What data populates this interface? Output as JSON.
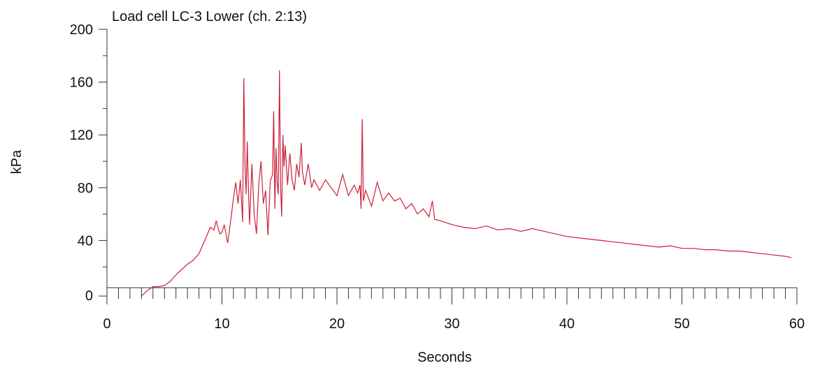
{
  "chart_data": {
    "type": "line",
    "title": "Load cell LC-3 Lower (ch. 2:13)",
    "xlabel": "Seconds",
    "ylabel": "kPa",
    "xlim": [
      0,
      60
    ],
    "ylim": [
      0,
      200
    ],
    "x_ticks": [
      "0",
      "10",
      "20",
      "30",
      "40",
      "50",
      "60"
    ],
    "y_ticks": [
      "0",
      "40",
      "80",
      "120",
      "160",
      "200"
    ],
    "grid": false,
    "line_color": "#cc1f3a",
    "series": [
      {
        "x": [
          3.0,
          3.5,
          4.0,
          4.5,
          5.0,
          5.5,
          6.0,
          6.5,
          7.0,
          7.5,
          8.0,
          8.5,
          9.0,
          9.3,
          9.5,
          9.8,
          10.0,
          10.2,
          10.5,
          10.8,
          11.0,
          11.2,
          11.4,
          11.6,
          11.8,
          11.9,
          12.0,
          12.1,
          12.2,
          12.3,
          12.4,
          12.6,
          12.8,
          13.0,
          13.2,
          13.4,
          13.6,
          13.8,
          14.0,
          14.2,
          14.4,
          14.5,
          14.6,
          14.7,
          14.8,
          14.9,
          15.0,
          15.1,
          15.2,
          15.3,
          15.4,
          15.5,
          15.7,
          15.9,
          16.1,
          16.3,
          16.5,
          16.7,
          16.9,
          17.0,
          17.2,
          17.5,
          17.8,
          18.0,
          18.5,
          19.0,
          19.5,
          20.0,
          20.5,
          21.0,
          21.5,
          21.8,
          22.0,
          22.1,
          22.2,
          22.3,
          22.5,
          23.0,
          23.5,
          24.0,
          24.5,
          25.0,
          25.5,
          26.0,
          26.5,
          27.0,
          27.5,
          28.0,
          28.3,
          28.5,
          29.0,
          30.0,
          31.0,
          32.0,
          33.0,
          34.0,
          35.0,
          36.0,
          37.0,
          38.0,
          39.0,
          40.0,
          41.0,
          42.0,
          43.0,
          44.0,
          45.0,
          46.0,
          47.0,
          48.0,
          49.0,
          50.0,
          51.0,
          52.0,
          53.0,
          54.0,
          55.0,
          56.0,
          57.0,
          58.0,
          59.0,
          59.5
        ],
        "y": [
          0,
          2,
          5,
          5,
          6,
          9,
          14,
          18,
          22,
          25,
          30,
          40,
          50,
          48,
          55,
          45,
          46,
          52,
          38,
          58,
          72,
          84,
          68,
          86,
          54,
          163,
          100,
          75,
          115,
          80,
          52,
          98,
          60,
          45,
          82,
          100,
          68,
          78,
          44,
          85,
          90,
          138,
          64,
          110,
          84,
          75,
          169,
          80,
          58,
          120,
          96,
          112,
          82,
          106,
          86,
          78,
          98,
          88,
          114,
          92,
          82,
          98,
          80,
          86,
          78,
          86,
          80,
          74,
          90,
          74,
          82,
          76,
          82,
          64,
          132,
          70,
          78,
          66,
          84,
          70,
          76,
          70,
          72,
          64,
          68,
          60,
          64,
          58,
          70,
          56,
          55,
          52,
          50,
          49,
          51,
          48,
          49,
          47,
          49,
          47,
          45,
          43,
          42,
          41,
          40,
          39,
          38,
          37,
          36,
          35,
          36,
          34,
          34,
          33,
          33,
          32,
          32,
          31,
          30,
          29,
          28,
          27
        ]
      }
    ]
  }
}
